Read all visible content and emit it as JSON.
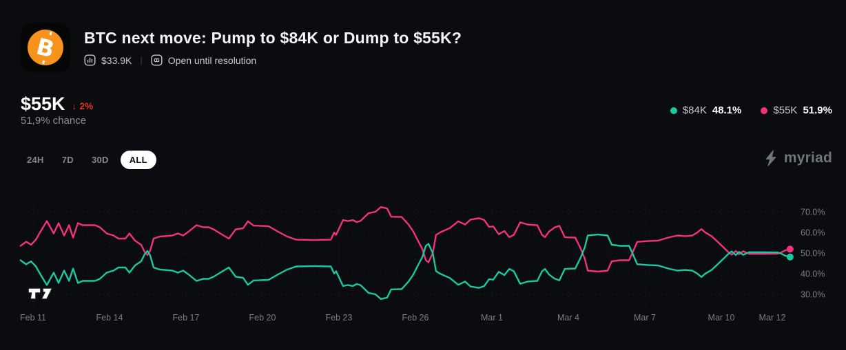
{
  "header": {
    "title": "BTC next move: Pump to $84K or Dump to $55K?",
    "volume": "$33.9K",
    "status": "Open until resolution"
  },
  "icons": {
    "market_logo": "bitcoin",
    "volume": "bar-chart",
    "status": "infinity",
    "brand": "lightning-bolt",
    "chart_watermark": "tradingview"
  },
  "outcome": {
    "label": "$55K",
    "change_label": "↓ 2%",
    "change_direction": "down",
    "change_color": "#ee3124",
    "chance": "51,9% chance"
  },
  "legend": [
    {
      "label": "$84K",
      "value": "48.1%",
      "color": "#18c9a4"
    },
    {
      "label": "$55K",
      "value": "51.9%",
      "color": "#f43180"
    }
  ],
  "ranges": [
    {
      "label": "24H",
      "active": false
    },
    {
      "label": "7D",
      "active": false
    },
    {
      "label": "30D",
      "active": false
    },
    {
      "label": "ALL",
      "active": true
    }
  ],
  "brand": {
    "name": "myriad"
  },
  "chart_data": {
    "type": "line",
    "title": "Outcome probability over time",
    "x_unit": "days since Feb 11",
    "ylim": [
      24,
      78
    ],
    "yticks": [
      30,
      40,
      50,
      60,
      70
    ],
    "ytick_labels": [
      "30.0%",
      "40.0%",
      "50.0%",
      "60.0%",
      "70.0%"
    ],
    "grid": "dotted",
    "legend_position": "top-right",
    "end_dots": true,
    "ticks": [
      {
        "x": 0,
        "label": "Feb 11"
      },
      {
        "x": 3,
        "label": "Feb 14"
      },
      {
        "x": 6,
        "label": "Feb 17"
      },
      {
        "x": 9,
        "label": "Feb 20"
      },
      {
        "x": 12,
        "label": "Feb 23"
      },
      {
        "x": 15,
        "label": "Feb 26"
      },
      {
        "x": 18,
        "label": "Mar 1"
      },
      {
        "x": 21,
        "label": "Mar 4"
      },
      {
        "x": 24,
        "label": "Mar 7"
      },
      {
        "x": 27,
        "label": "Mar 10"
      },
      {
        "x": 29,
        "label": "Mar 12"
      }
    ],
    "x": [
      -0.49,
      -0.27,
      -0.08,
      0.11,
      0.27,
      0.54,
      0.81,
      1.0,
      1.22,
      1.41,
      1.57,
      1.76,
      1.95,
      2.43,
      2.62,
      2.89,
      3.16,
      3.35,
      3.62,
      3.78,
      4.0,
      4.24,
      4.38,
      4.49,
      4.59,
      4.73,
      4.97,
      5.46,
      5.68,
      5.89,
      6.11,
      6.41,
      6.68,
      6.89,
      7.08,
      7.41,
      7.68,
      7.95,
      8.24,
      8.43,
      8.65,
      9.24,
      9.59,
      9.97,
      10.32,
      11.0,
      11.68,
      11.81,
      11.89,
      12.16,
      12.35,
      12.54,
      12.7,
      12.84,
      13.16,
      13.43,
      13.65,
      13.89,
      14.05,
      14.46,
      14.73,
      14.92,
      15.14,
      15.27,
      15.41,
      15.51,
      15.68,
      15.81,
      16.0,
      16.35,
      16.68,
      16.95,
      17.16,
      17.49,
      17.7,
      17.89,
      18.05,
      18.27,
      18.49,
      18.68,
      18.86,
      19.11,
      19.41,
      19.78,
      19.97,
      20.08,
      20.24,
      20.46,
      20.65,
      20.86,
      21.27,
      21.49,
      21.65,
      21.76,
      22.16,
      22.54,
      22.7,
      23.03,
      23.38,
      23.51,
      23.7,
      24.11,
      24.51,
      24.92,
      25.27,
      25.59,
      25.86,
      26.05,
      26.22,
      26.38,
      26.62,
      26.86,
      27.08,
      27.27,
      27.41,
      27.57,
      27.7,
      27.86,
      28.08,
      28.65,
      29.19,
      29.32,
      29.51,
      29.7
    ],
    "series": [
      {
        "name": "$55K",
        "color": "#f43180",
        "values": [
          53.5,
          55.5,
          54.0,
          56.5,
          60.0,
          65.5,
          59.5,
          64.5,
          58.5,
          63.5,
          57.5,
          64.5,
          63.5,
          63.5,
          62.5,
          59.5,
          58.5,
          57.0,
          57.0,
          59.5,
          56.0,
          54.0,
          50.5,
          49.0,
          51.0,
          57.0,
          58.0,
          58.5,
          59.5,
          58.5,
          60.5,
          63.5,
          62.5,
          62.5,
          61.5,
          59.0,
          57.0,
          61.5,
          62.0,
          65.4,
          63.3,
          63.0,
          60.5,
          58.0,
          56.5,
          56.3,
          56.5,
          59.9,
          58.8,
          66.0,
          65.5,
          66.0,
          65.0,
          65.5,
          69.3,
          70.0,
          72.3,
          71.6,
          67.6,
          67.5,
          63.8,
          60.4,
          55.0,
          52.0,
          46.5,
          45.5,
          50.0,
          58.8,
          60.2,
          62.1,
          65.4,
          63.8,
          66.2,
          66.9,
          66.0,
          62.7,
          62.9,
          59.1,
          60.7,
          57.7,
          58.8,
          64.9,
          63.8,
          63.5,
          58.8,
          57.7,
          60.4,
          62.4,
          63.2,
          57.7,
          57.5,
          52.0,
          47.1,
          41.5,
          41.0,
          41.5,
          46.0,
          46.5,
          46.5,
          50.0,
          55.4,
          55.8,
          56.0,
          57.5,
          58.5,
          58.2,
          58.5,
          59.9,
          61.6,
          59.9,
          58.2,
          55.4,
          52.8,
          50.5,
          49.2,
          51.0,
          49.4,
          50.9,
          49.6,
          49.6,
          49.7,
          50.1,
          51.3,
          51.9
        ]
      },
      {
        "name": "$84K",
        "color": "#18c9a4",
        "values": [
          46.5,
          44.5,
          46.0,
          43.5,
          40.0,
          34.5,
          40.5,
          35.5,
          41.5,
          36.5,
          42.5,
          35.5,
          36.5,
          36.5,
          37.5,
          40.5,
          41.5,
          43.0,
          43.0,
          40.5,
          44.0,
          46.0,
          49.5,
          51.0,
          49.0,
          43.0,
          42.0,
          41.5,
          40.5,
          41.5,
          39.5,
          36.5,
          37.5,
          37.5,
          38.5,
          41.0,
          43.0,
          38.5,
          38.0,
          34.6,
          36.7,
          37.0,
          39.5,
          42.0,
          43.5,
          43.7,
          43.5,
          40.1,
          41.2,
          34.0,
          34.5,
          34.0,
          35.0,
          34.5,
          30.7,
          30.0,
          27.7,
          28.4,
          32.4,
          32.5,
          36.2,
          39.6,
          45.0,
          48.0,
          53.5,
          54.5,
          50.0,
          41.2,
          39.8,
          37.9,
          34.6,
          36.2,
          33.8,
          33.1,
          34.0,
          37.3,
          37.1,
          40.9,
          39.3,
          42.3,
          41.2,
          35.1,
          36.2,
          36.5,
          41.2,
          42.3,
          39.6,
          37.6,
          36.8,
          42.3,
          42.5,
          48.0,
          52.9,
          58.5,
          59.0,
          58.5,
          54.0,
          53.5,
          53.5,
          50.0,
          44.6,
          44.2,
          44.0,
          42.5,
          41.5,
          41.8,
          41.5,
          40.1,
          38.4,
          40.1,
          41.8,
          44.6,
          47.2,
          49.5,
          50.8,
          49.0,
          50.6,
          49.1,
          50.4,
          50.4,
          50.3,
          49.9,
          48.7,
          48.1
        ]
      }
    ]
  }
}
